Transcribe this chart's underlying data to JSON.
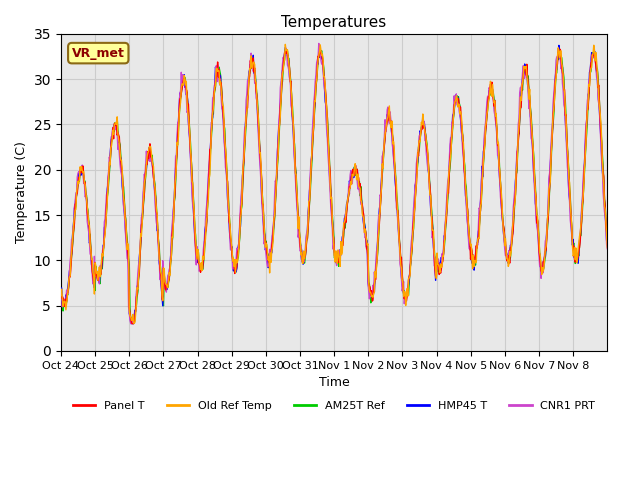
{
  "title": "Temperatures",
  "ylabel": "Temperature (C)",
  "xlabel": "Time",
  "ylim": [
    0,
    35
  ],
  "yticks": [
    0,
    5,
    10,
    15,
    20,
    25,
    30,
    35
  ],
  "annotation_text": "VR_met",
  "annotation_color": "#8B0000",
  "annotation_bg": "#FFFF99",
  "grid_color": "#CCCCCC",
  "plot_bg": "#E8E8E8",
  "colors": {
    "Panel T": "#FF0000",
    "Old Ref Temp": "#FFA500",
    "AM25T Ref": "#00CC00",
    "HMP45 T": "#0000FF",
    "CNR1 PRT": "#CC44CC"
  },
  "xtick_labels": [
    "Oct 24",
    "Oct 25",
    "Oct 26",
    "Oct 27",
    "Oct 28",
    "Oct 29",
    "Oct 30",
    "Oct 31",
    "Nov 1",
    "Nov 2",
    "Nov 3",
    "Nov 4",
    "Nov 5",
    "Nov 6",
    "Nov 7",
    "Nov 8"
  ],
  "linewidth": 1.0
}
